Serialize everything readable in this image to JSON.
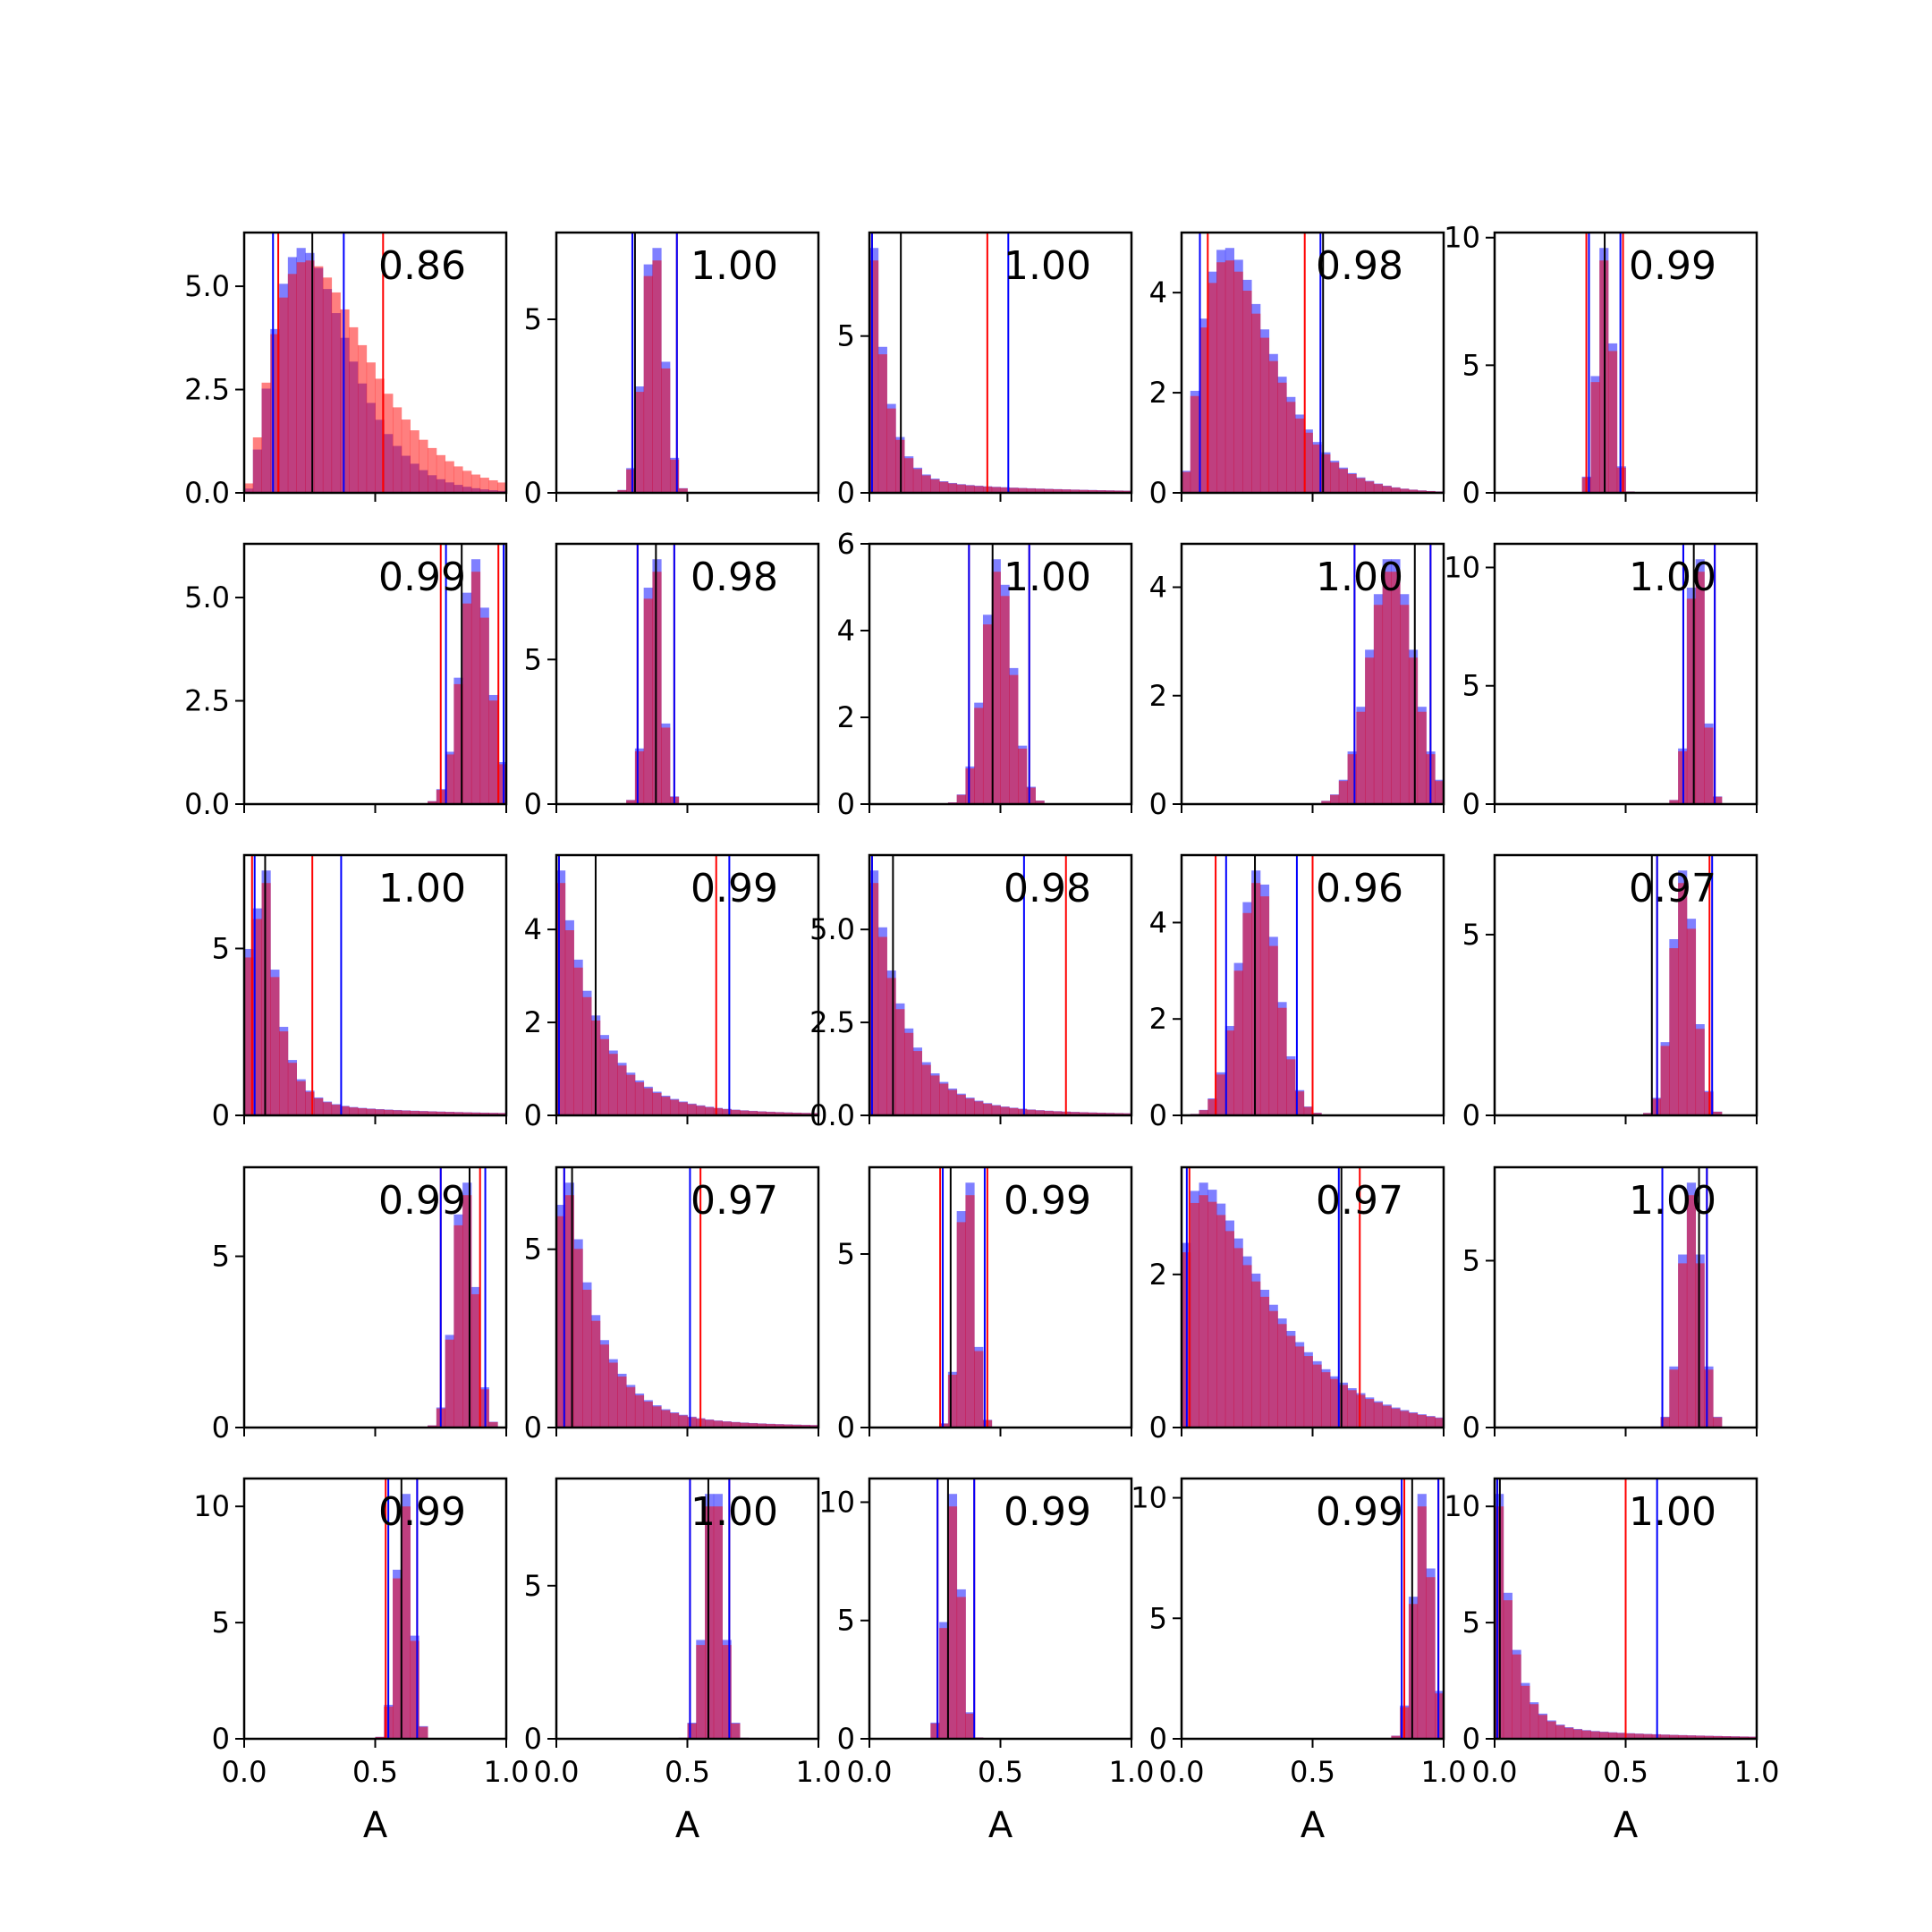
{
  "chart_data": {
    "type": "bar",
    "layout": "5x5 grid of histograms",
    "x_range": [
      0,
      1
    ],
    "xlabel": "A",
    "x_tick_labels": [
      "0.0",
      "0.5",
      "1.0"
    ],
    "colors": {
      "series_a": "#ff0000",
      "series_b": "#0000ff",
      "overlap": "#7f3fbf",
      "mean_line": "#000000"
    },
    "opacity": 0.5,
    "panels": [
      {
        "score": "0.86",
        "ylim": [
          0,
          6.3
        ],
        "yticks": [
          0,
          2.5,
          5
        ],
        "ytick_labels": [
          "0.0",
          "2.5",
          "5.0"
        ],
        "shape": {
          "kind": "skew",
          "mode": 0.22,
          "spread": 0.09
        },
        "red_shape": {
          "kind": "skew",
          "mode": 0.24,
          "spread": 0.13
        },
        "red_lines": [
          0.13,
          0.53
        ],
        "blue_lines": [
          0.11,
          0.38
        ],
        "black_line": 0.26
      },
      {
        "score": "1.00",
        "ylim": [
          0,
          7.5
        ],
        "yticks": [
          0,
          5
        ],
        "ytick_labels": [
          "0",
          "5"
        ],
        "shape": {
          "kind": "normal",
          "mean": 0.37,
          "sd": 0.04
        },
        "red_lines": [
          0.29,
          0.46
        ],
        "blue_lines": [
          0.29,
          0.46
        ],
        "black_line": 0.3
      },
      {
        "score": "1.00",
        "ylim": [
          0,
          8.3
        ],
        "yticks": [
          0,
          5
        ],
        "ytick_labels": [
          "0",
          "5"
        ],
        "shape": {
          "kind": "decay",
          "peak": 0.01,
          "rate": 0.06
        },
        "red_lines": [
          0.01,
          0.45
        ],
        "blue_lines": [
          0.01,
          0.53
        ],
        "black_line": 0.12
      },
      {
        "score": "0.98",
        "ylim": [
          0,
          5.2
        ],
        "yticks": [
          0,
          2,
          4
        ],
        "ytick_labels": [
          "0",
          "2",
          "4"
        ],
        "shape": {
          "kind": "skew",
          "mode": 0.17,
          "spread": 0.1
        },
        "red_lines": [
          0.1,
          0.47
        ],
        "blue_lines": [
          0.07,
          0.53
        ],
        "black_line": 0.54
      },
      {
        "score": "0.99",
        "ylim": [
          0,
          10.2
        ],
        "yticks": [
          0,
          5,
          10
        ],
        "ytick_labels": [
          "0",
          "5",
          "10"
        ],
        "shape": {
          "kind": "normal",
          "mean": 0.42,
          "sd": 0.03
        },
        "red_lines": [
          0.35,
          0.49
        ],
        "blue_lines": [
          0.36,
          0.48
        ],
        "black_line": 0.42
      },
      {
        "score": "0.99",
        "ylim": [
          0,
          6.3
        ],
        "yticks": [
          0,
          2.5,
          5
        ],
        "ytick_labels": [
          "0.0",
          "2.5",
          "5.0"
        ],
        "shape": {
          "kind": "normal",
          "mean": 0.88,
          "sd": 0.055
        },
        "red_lines": [
          0.75,
          0.97
        ],
        "blue_lines": [
          0.77,
          0.99
        ],
        "black_line": 0.83
      },
      {
        "score": "0.98",
        "ylim": [
          0,
          9
        ],
        "yticks": [
          0,
          5
        ],
        "ytick_labels": [
          "0",
          "5"
        ],
        "shape": {
          "kind": "normal",
          "mean": 0.37,
          "sd": 0.03
        },
        "red_lines": [
          0.31,
          0.45
        ],
        "blue_lines": [
          0.31,
          0.45
        ],
        "black_line": 0.38
      },
      {
        "score": "1.00",
        "ylim": [
          0,
          6
        ],
        "yticks": [
          0,
          2,
          4,
          6
        ],
        "ytick_labels": [
          "0",
          "2",
          "4",
          "6"
        ],
        "shape": {
          "kind": "normal",
          "mean": 0.49,
          "sd": 0.055
        },
        "red_lines": [
          0.38,
          0.61
        ],
        "blue_lines": [
          0.38,
          0.61
        ],
        "black_line": 0.47
      },
      {
        "score": "1.00",
        "ylim": [
          0,
          4.8
        ],
        "yticks": [
          0,
          2,
          4
        ],
        "ytick_labels": [
          "0",
          "2",
          "4"
        ],
        "shape": {
          "kind": "normal",
          "mean": 0.8,
          "sd": 0.085
        },
        "red_lines": [
          0.66,
          0.95
        ],
        "blue_lines": [
          0.66,
          0.95
        ],
        "black_line": 0.89
      },
      {
        "score": "1.00",
        "ylim": [
          0,
          11
        ],
        "yticks": [
          0,
          5,
          10
        ],
        "ytick_labels": [
          "0",
          "5",
          "10"
        ],
        "shape": {
          "kind": "normal",
          "mean": 0.77,
          "sd": 0.03
        },
        "red_lines": [
          0.72,
          0.84
        ],
        "blue_lines": [
          0.72,
          0.84
        ],
        "black_line": 0.76
      },
      {
        "score": "1.00",
        "ylim": [
          0,
          7.8
        ],
        "yticks": [
          0,
          5
        ],
        "ytick_labels": [
          "0",
          "5"
        ],
        "shape": {
          "kind": "decay",
          "peak": 0.08,
          "rate": 0.06
        },
        "red_lines": [
          0.03,
          0.26
        ],
        "blue_lines": [
          0.04,
          0.37
        ],
        "black_line": 0.08
      },
      {
        "score": "0.99",
        "ylim": [
          0,
          5.6
        ],
        "yticks": [
          0,
          2,
          4
        ],
        "ytick_labels": [
          "0",
          "2",
          "4"
        ],
        "shape": {
          "kind": "decay",
          "peak": 0.01,
          "rate": 0.14
        },
        "red_lines": [
          0.01,
          0.61
        ],
        "blue_lines": [
          0.01,
          0.66
        ],
        "black_line": 0.15
      },
      {
        "score": "0.98",
        "ylim": [
          0,
          7
        ],
        "yticks": [
          0,
          2.5,
          5
        ],
        "ytick_labels": [
          "0.0",
          "2.5",
          "5.0"
        ],
        "shape": {
          "kind": "decay",
          "peak": 0.01,
          "rate": 0.12
        },
        "red_lines": [
          0.01,
          0.75
        ],
        "blue_lines": [
          0.01,
          0.59
        ],
        "black_line": 0.09
      },
      {
        "score": "0.96",
        "ylim": [
          0,
          5.4
        ],
        "yticks": [
          0,
          2,
          4
        ],
        "ytick_labels": [
          "0",
          "2",
          "4"
        ],
        "shape": {
          "kind": "normal",
          "mean": 0.29,
          "sd": 0.075
        },
        "red_lines": [
          0.13,
          0.5
        ],
        "blue_lines": [
          0.17,
          0.44
        ],
        "black_line": 0.28
      },
      {
        "score": "0.97",
        "ylim": [
          0,
          7.2
        ],
        "yticks": [
          0,
          5
        ],
        "ytick_labels": [
          "0",
          "5"
        ],
        "shape": {
          "kind": "normal",
          "mean": 0.72,
          "sd": 0.045
        },
        "red_lines": [
          0.62,
          0.82
        ],
        "blue_lines": [
          0.62,
          0.83
        ],
        "black_line": 0.6
      },
      {
        "score": "0.99",
        "ylim": [
          0,
          7.6
        ],
        "yticks": [
          0,
          5
        ],
        "ytick_labels": [
          "0",
          "5"
        ],
        "shape": {
          "kind": "normal",
          "mean": 0.84,
          "sd": 0.04
        },
        "red_lines": [
          0.75,
          0.9
        ],
        "blue_lines": [
          0.75,
          0.92
        ],
        "black_line": 0.86
      },
      {
        "score": "0.97",
        "ylim": [
          0,
          7.3
        ],
        "yticks": [
          0,
          5
        ],
        "ytick_labels": [
          "0",
          "5"
        ],
        "shape": {
          "kind": "decay",
          "peak": 0.03,
          "rate": 0.12
        },
        "red_lines": [
          0.03,
          0.55
        ],
        "blue_lines": [
          0.03,
          0.51
        ],
        "black_line": 0.06
      },
      {
        "score": "0.99",
        "ylim": [
          0,
          7.5
        ],
        "yticks": [
          0,
          5
        ],
        "ytick_labels": [
          "0",
          "5"
        ],
        "shape": {
          "kind": "normal",
          "mean": 0.37,
          "sd": 0.03
        },
        "red_lines": [
          0.27,
          0.45
        ],
        "blue_lines": [
          0.28,
          0.44
        ],
        "black_line": 0.31
      },
      {
        "score": "0.97",
        "ylim": [
          0,
          3.4
        ],
        "yticks": [
          0,
          2
        ],
        "ytick_labels": [
          "0",
          "2"
        ],
        "shape": {
          "kind": "skew",
          "mode": 0.08,
          "spread": 0.22
        },
        "red_lines": [
          0.03,
          0.68
        ],
        "blue_lines": [
          0.02,
          0.6
        ],
        "black_line": 0.61
      },
      {
        "score": "1.00",
        "ylim": [
          0,
          7.8
        ],
        "yticks": [
          0,
          5
        ],
        "ytick_labels": [
          "0",
          "5"
        ],
        "shape": {
          "kind": "normal",
          "mean": 0.75,
          "sd": 0.04
        },
        "red_lines": [
          0.64,
          0.81
        ],
        "blue_lines": [
          0.64,
          0.81
        ],
        "black_line": 0.78
      },
      {
        "score": "0.99",
        "ylim": [
          0,
          11.2
        ],
        "yticks": [
          0,
          5,
          10
        ],
        "ytick_labels": [
          "0",
          "5",
          "10"
        ],
        "shape": {
          "kind": "normal",
          "mean": 0.61,
          "sd": 0.03
        },
        "red_lines": [
          0.54,
          0.66
        ],
        "blue_lines": [
          0.55,
          0.66
        ],
        "black_line": 0.6
      },
      {
        "score": "1.00",
        "ylim": [
          0,
          8.5
        ],
        "yticks": [
          0,
          5
        ],
        "ytick_labels": [
          "0",
          "5"
        ],
        "shape": {
          "kind": "normal",
          "mean": 0.6,
          "sd": 0.035
        },
        "red_lines": [
          0.51,
          0.66
        ],
        "blue_lines": [
          0.51,
          0.66
        ],
        "black_line": 0.58
      },
      {
        "score": "0.99",
        "ylim": [
          0,
          11
        ],
        "yticks": [
          0,
          5,
          10
        ],
        "ytick_labels": [
          "0",
          "5",
          "10"
        ],
        "shape": {
          "kind": "normal",
          "mean": 0.32,
          "sd": 0.03
        },
        "red_lines": [
          0.26,
          0.4
        ],
        "blue_lines": [
          0.26,
          0.4
        ],
        "black_line": 0.3
      },
      {
        "score": "0.99",
        "ylim": [
          0,
          10.8
        ],
        "yticks": [
          0,
          5,
          10
        ],
        "ytick_labels": [
          "0",
          "5",
          "10"
        ],
        "shape": {
          "kind": "normal",
          "mean": 0.92,
          "sd": 0.035
        },
        "red_lines": [
          0.85,
          0.98
        ],
        "blue_lines": [
          0.84,
          0.98
        ],
        "black_line": 0.88
      },
      {
        "score": "1.00",
        "ylim": [
          0,
          11.2
        ],
        "yticks": [
          0,
          5,
          10
        ],
        "ytick_labels": [
          "0",
          "5",
          "10"
        ],
        "shape": {
          "kind": "decay",
          "peak": 0.01,
          "rate": 0.06
        },
        "red_lines": [
          0.01,
          0.5
        ],
        "blue_lines": [
          0.01,
          0.62
        ],
        "black_line": 0.02
      }
    ]
  }
}
